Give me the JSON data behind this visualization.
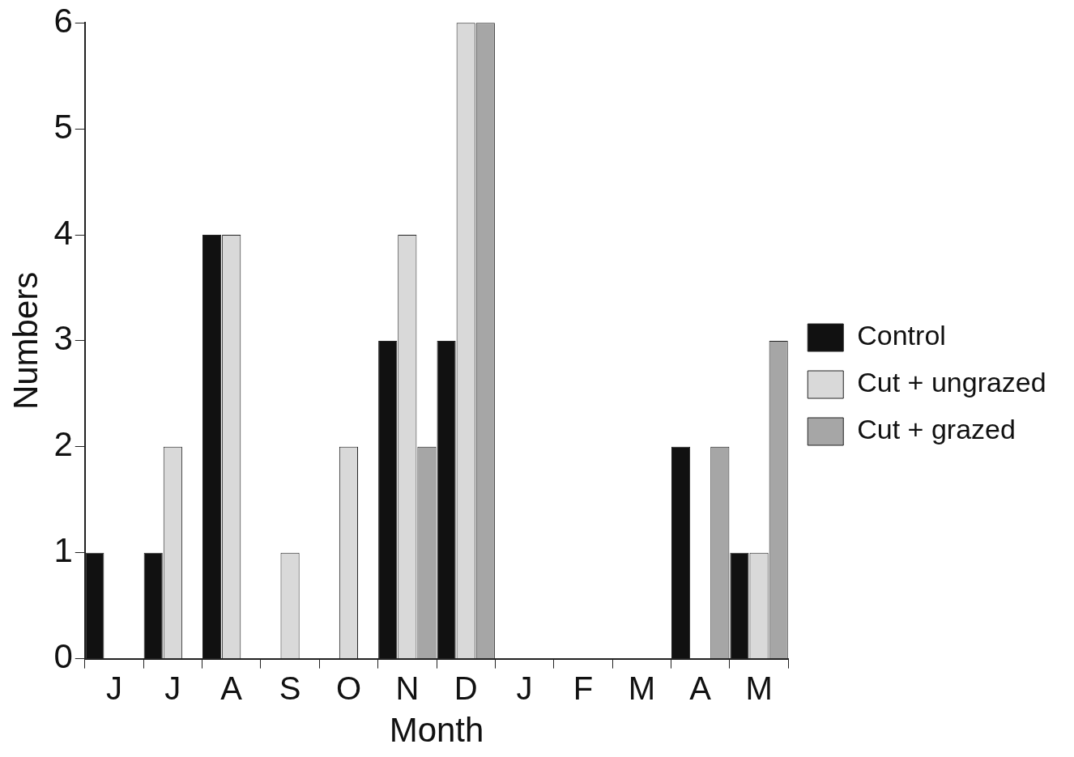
{
  "chart_data": {
    "type": "bar",
    "xlabel": "Month",
    "ylabel": "Numbers",
    "categories": [
      "J",
      "J",
      "A",
      "S",
      "O",
      "N",
      "D",
      "J",
      "F",
      "M",
      "A",
      "M"
    ],
    "series": [
      {
        "name": "Control",
        "color": "#111111",
        "values": [
          1,
          1,
          4,
          0,
          0,
          3,
          3,
          0,
          0,
          0,
          2,
          1
        ]
      },
      {
        "name": "Cut + ungrazed",
        "color": "#d9d9d9",
        "values": [
          0,
          2,
          4,
          1,
          2,
          4,
          6,
          0,
          0,
          0,
          0,
          1
        ]
      },
      {
        "name": "Cut + grazed",
        "color": "#a6a6a6",
        "values": [
          0,
          0,
          0,
          0,
          0,
          2,
          6,
          0,
          0,
          0,
          2,
          3
        ]
      }
    ],
    "ylim": [
      0,
      6
    ],
    "yticks": [
      0,
      1,
      2,
      3,
      4,
      5,
      6
    ],
    "grid": false,
    "legend": "right"
  }
}
